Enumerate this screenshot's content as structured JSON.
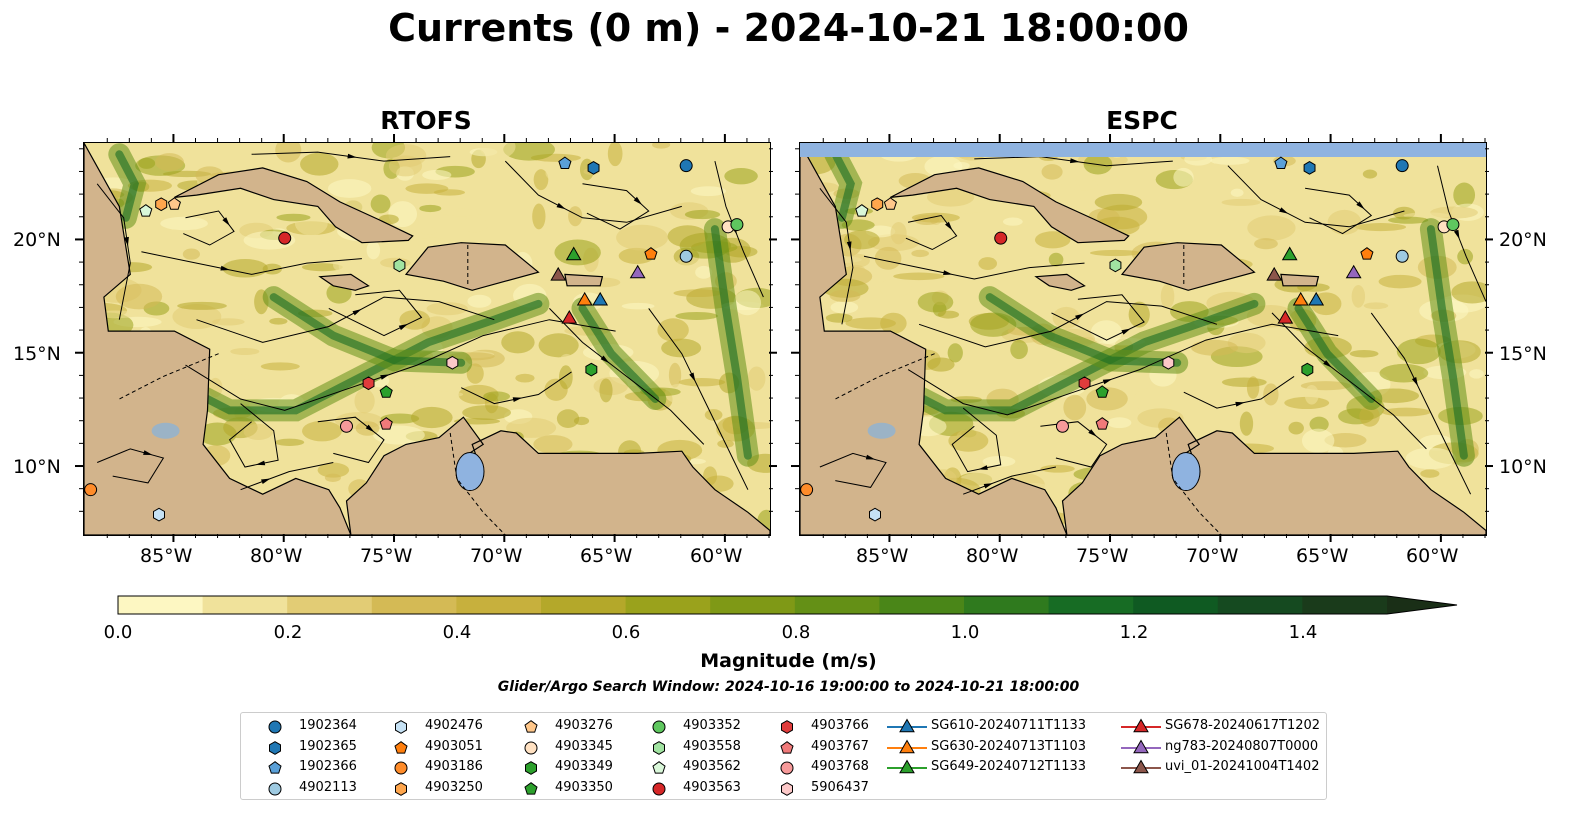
{
  "title": "Currents (0 m) - 2024-10-21 18:00:00",
  "panels": [
    {
      "title": "RTOFS"
    },
    {
      "title": "ESPC"
    }
  ],
  "axes": {
    "lon_labels": [
      "85°W",
      "80°W",
      "75°W",
      "70°W",
      "65°W",
      "60°W"
    ],
    "lat_labels": [
      "20°N",
      "15°N",
      "10°N"
    ]
  },
  "colorbar": {
    "ticks": [
      "0.0",
      "0.2",
      "0.4",
      "0.6",
      "0.8",
      "1.0",
      "1.2",
      "1.4"
    ],
    "label": "Magnitude (m/s)",
    "colors": [
      "#fdf7c2",
      "#f0e29b",
      "#e2cc75",
      "#d4ba55",
      "#c7b03d",
      "#b4a82a",
      "#9aa21c",
      "#7f9916",
      "#649016",
      "#4a8618",
      "#2f7a1e",
      "#176c24",
      "#0f5a22",
      "#154a20",
      "#1a3b1b",
      "#1a2f17"
    ]
  },
  "search_window": "Glider/Argo Search Window: 2024-10-16 19:00:00 to 2024-10-21 18:00:00",
  "legend": [
    {
      "label": "1902364",
      "shape": "circle",
      "color": "#1f77b4"
    },
    {
      "label": "1902365",
      "shape": "hexagon",
      "color": "#1f77b4"
    },
    {
      "label": "1902366",
      "shape": "pentagon",
      "color": "#5aa0d8"
    },
    {
      "label": "4902113",
      "shape": "circle",
      "color": "#9ecae1"
    },
    {
      "label": "4902476",
      "shape": "hexagon",
      "color": "#c6e2f5"
    },
    {
      "label": "4903051",
      "shape": "pentagon",
      "color": "#ff7f0e"
    },
    {
      "label": "4903186",
      "shape": "circle",
      "color": "#ff8c2a"
    },
    {
      "label": "4903250",
      "shape": "hexagon",
      "color": "#ffa64d"
    },
    {
      "label": "4903276",
      "shape": "pentagon",
      "color": "#ffc78a"
    },
    {
      "label": "4903345",
      "shape": "circle",
      "color": "#ffe1c2"
    },
    {
      "label": "4903349",
      "shape": "hexagon",
      "color": "#2ca02c"
    },
    {
      "label": "4903350",
      "shape": "pentagon",
      "color": "#2ca02c"
    },
    {
      "label": "4903352",
      "shape": "circle",
      "color": "#5fc75f"
    },
    {
      "label": "4903558",
      "shape": "hexagon",
      "color": "#a1e3a1"
    },
    {
      "label": "4903562",
      "shape": "pentagon",
      "color": "#d9f7d9"
    },
    {
      "label": "4903563",
      "shape": "circle",
      "color": "#d62728"
    },
    {
      "label": "4903766",
      "shape": "hexagon",
      "color": "#e03c3c"
    },
    {
      "label": "4903767",
      "shape": "pentagon",
      "color": "#f07a7a"
    },
    {
      "label": "4903768",
      "shape": "circle",
      "color": "#f79a9a"
    },
    {
      "label": "5906437",
      "shape": "hexagon",
      "color": "#fcc8c8"
    },
    {
      "label": "SG610-20240711T1133",
      "shape": "triangle",
      "color": "#1f77b4"
    },
    {
      "label": "SG630-20240713T1103",
      "shape": "triangle",
      "color": "#ff7f0e"
    },
    {
      "label": "SG649-20240712T1133",
      "shape": "triangle",
      "color": "#2ca02c"
    },
    {
      "label": "SG678-20240617T1202",
      "shape": "triangle",
      "color": "#d62728"
    },
    {
      "label": "ng783-20240807T0000",
      "shape": "triangle",
      "color": "#9467bd"
    },
    {
      "label": "uvi_01-20241004T1402",
      "shape": "triangle",
      "color": "#8c564b"
    }
  ],
  "palette": {
    "land": "#d2b48c",
    "water_body": "#8fb3e0",
    "river": "#9bb3c6",
    "no_data": "#8fb3e0"
  },
  "stations": [
    {
      "id": "1902364",
      "lon": -61.8,
      "lat": 23.3
    },
    {
      "id": "1902365",
      "lon": -66.0,
      "lat": 23.2
    },
    {
      "id": "1902366",
      "lon": -67.3,
      "lat": 23.4
    },
    {
      "id": "4902113",
      "lon": -61.8,
      "lat": 19.3
    },
    {
      "id": "4902476",
      "lon": -85.7,
      "lat": 7.9
    },
    {
      "id": "4903051",
      "lon": -63.4,
      "lat": 19.4
    },
    {
      "id": "4903186",
      "lon": -88.8,
      "lat": 9.0
    },
    {
      "id": "4903250",
      "lon": -85.6,
      "lat": 21.6
    },
    {
      "id": "4903276",
      "lon": -85.0,
      "lat": 21.6
    },
    {
      "id": "4903345",
      "lon": -59.9,
      "lat": 20.6
    },
    {
      "id": "4903349",
      "lon": -66.1,
      "lat": 14.3
    },
    {
      "id": "4903350",
      "lon": -75.4,
      "lat": 13.3
    },
    {
      "id": "4903352",
      "lon": -59.5,
      "lat": 20.7
    },
    {
      "id": "4903558",
      "lon": -74.8,
      "lat": 18.9
    },
    {
      "id": "4903562",
      "lon": -86.3,
      "lat": 21.3
    },
    {
      "id": "4903563",
      "lon": -80.0,
      "lat": 20.1
    },
    {
      "id": "4903766",
      "lon": -76.2,
      "lat": 13.7
    },
    {
      "id": "4903767",
      "lon": -75.4,
      "lat": 11.9
    },
    {
      "id": "4903768",
      "lon": -77.2,
      "lat": 11.8
    },
    {
      "id": "5906437",
      "lon": -72.4,
      "lat": 14.6
    },
    {
      "id": "SG610-20240711T1133",
      "lon": -65.7,
      "lat": 17.4
    },
    {
      "id": "SG630-20240713T1103",
      "lon": -66.4,
      "lat": 17.4
    },
    {
      "id": "SG649-20240712T1133",
      "lon": -66.9,
      "lat": 19.4
    },
    {
      "id": "SG678-20240617T1202",
      "lon": -67.1,
      "lat": 16.6
    },
    {
      "id": "ng783-20240807T0000",
      "lon": -64.0,
      "lat": 18.6
    },
    {
      "id": "uvi_01-20241004T1402",
      "lon": -67.6,
      "lat": 18.5
    }
  ]
}
